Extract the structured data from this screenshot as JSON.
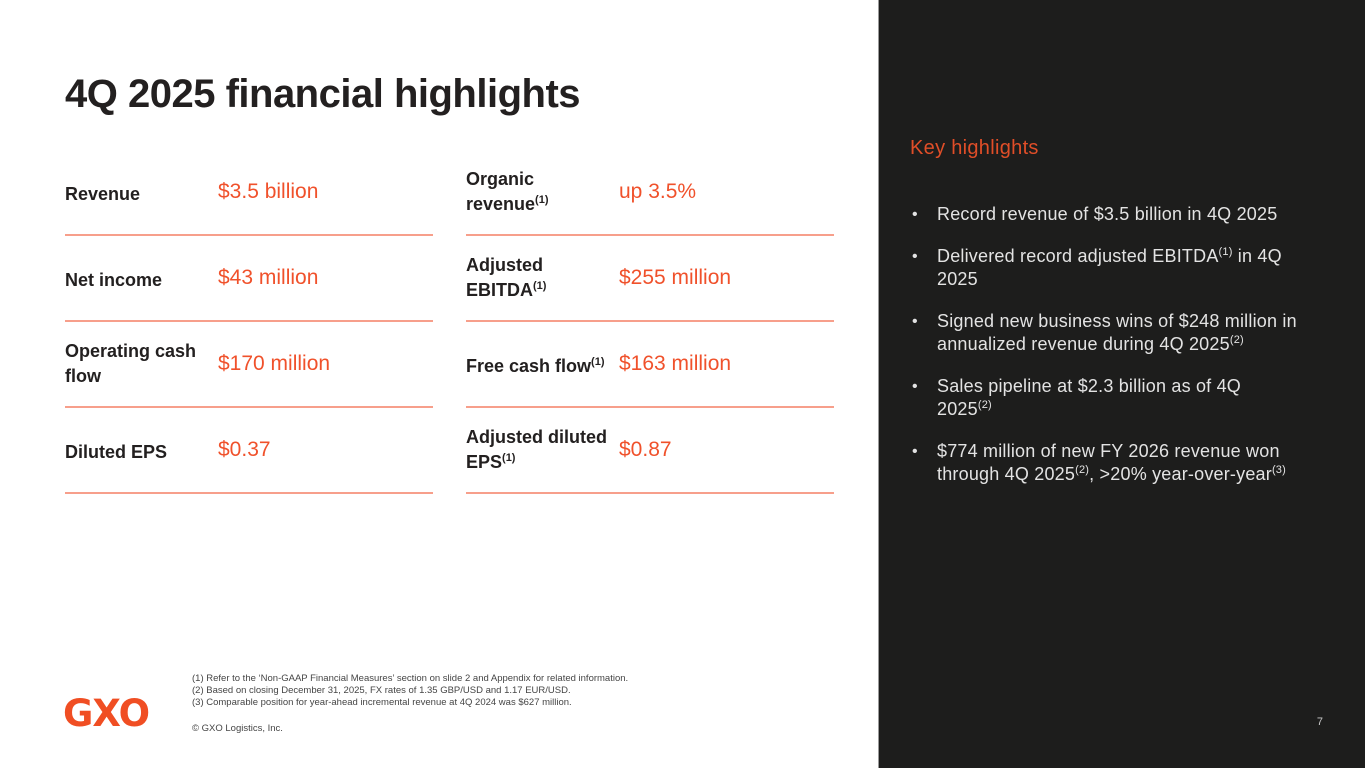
{
  "slide": {
    "title": "4Q 2025 financial highlights",
    "page_number": "7"
  },
  "metrics": {
    "left": [
      {
        "label": "Revenue",
        "sup": "",
        "value": "$3.5 billion"
      },
      {
        "label": "Net income",
        "sup": "",
        "value": "$43 million"
      },
      {
        "label": "Operating cash flow",
        "sup": "",
        "value": "$170 million"
      },
      {
        "label": "Diluted EPS",
        "sup": "",
        "value": "$0.37"
      }
    ],
    "right": [
      {
        "label": "Organic revenue",
        "sup": "(1)",
        "value": "up 3.5%"
      },
      {
        "label": "Adjusted EBITDA",
        "sup": "(1)",
        "value": "$255 million"
      },
      {
        "label": "Free cash flow",
        "sup": "(1)",
        "value": "$163 million"
      },
      {
        "label": "Adjusted diluted EPS",
        "sup": "(1)",
        "value": "$0.87"
      }
    ]
  },
  "sidebar": {
    "title": "Key highlights",
    "bullets": [
      {
        "segments": [
          {
            "text": "Record revenue of $3.5 billion in 4Q 2025"
          }
        ]
      },
      {
        "segments": [
          {
            "text": "Delivered record adjusted EBITDA"
          },
          {
            "sup": "(1)"
          },
          {
            "text": " in 4Q 2025"
          }
        ]
      },
      {
        "segments": [
          {
            "text": "Signed new business wins of $248 million in annualized revenue during 4Q 2025"
          },
          {
            "sup": "(2)"
          }
        ]
      },
      {
        "segments": [
          {
            "text": "Sales pipeline at $2.3 billion as of 4Q 2025"
          },
          {
            "sup": "(2)"
          }
        ]
      },
      {
        "segments": [
          {
            "text": "$774 million of new FY 2026 revenue won through 4Q 2025"
          },
          {
            "sup": "(2)"
          },
          {
            "text": ", >20% year-over-year"
          },
          {
            "sup": "(3)"
          }
        ]
      }
    ]
  },
  "footnotes": [
    "(1) Refer to the ‘Non-GAAP Financial Measures’ section on slide 2 and Appendix for related information.",
    "(2) Based on closing December 31, 2025, FX rates of 1.35 GBP/USD and 1.17 EUR/USD.",
    "(3) Comparable position for year-ahead incremental revenue at 4Q 2024 was $627 million."
  ],
  "footer": {
    "logo_text": "GXO",
    "copyright": "© GXO Logistics, Inc."
  },
  "colors": {
    "brand_orange": "#F0512B",
    "dark_panel": "#1D1D1C",
    "text_dark": "#232020",
    "sidebar_text": "#E3E3E3"
  }
}
